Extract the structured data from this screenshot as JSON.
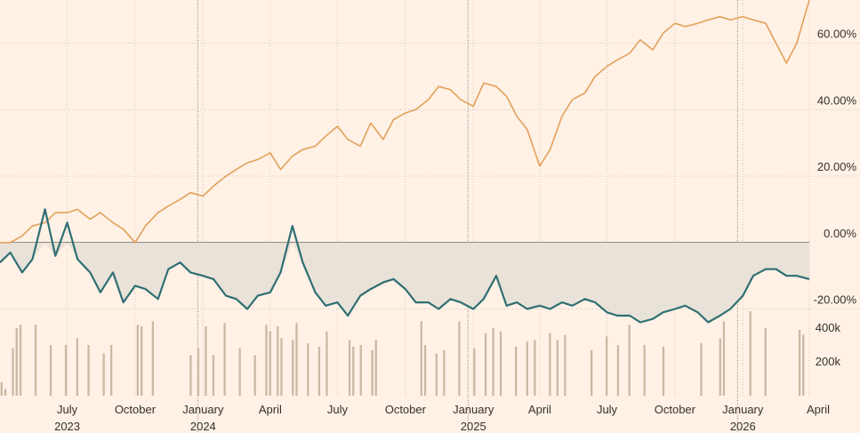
{
  "chart_data": {
    "type": "line",
    "x_axis": {
      "ticks": [
        {
          "label": "July",
          "year": "2023",
          "date": "2023-07-01"
        },
        {
          "label": "October",
          "year": "",
          "date": "2023-10-01"
        },
        {
          "label": "January",
          "year": "2024",
          "date": "2024-01-01"
        },
        {
          "label": "April",
          "year": "",
          "date": "2024-04-01"
        },
        {
          "label": "July",
          "year": "",
          "date": "2024-07-01"
        },
        {
          "label": "October",
          "year": "",
          "date": "2024-10-01"
        },
        {
          "label": "January",
          "year": "2025",
          "date": "2025-01-01"
        },
        {
          "label": "April",
          "year": "",
          "date": "2025-04-01"
        },
        {
          "label": "July",
          "year": "",
          "date": "2025-07-01"
        },
        {
          "label": "October",
          "year": "",
          "date": "2025-10-01"
        },
        {
          "label": "January",
          "year": "2026",
          "date": "2026-01-01"
        },
        {
          "label": "April",
          "year": "",
          "date": "2026-04-01"
        }
      ],
      "range": [
        "2023-04-01",
        "2026-04-01"
      ],
      "year_dividers": [
        "2024-01-01",
        "2025-01-01",
        "2026-01-01"
      ]
    },
    "y_axis": {
      "ticks": [
        {
          "label": "60.00%",
          "value": 60
        },
        {
          "label": "40.00%",
          "value": 40
        },
        {
          "label": "20.00%",
          "value": 20
        },
        {
          "label": "0.00%",
          "value": 0
        },
        {
          "label": "-20.00%",
          "value": -20
        }
      ],
      "range": [
        -22,
        73
      ]
    },
    "volume_axis": {
      "ticks": [
        {
          "label": "400k",
          "value": 400000
        },
        {
          "label": "200k",
          "value": 200000
        }
      ],
      "max": 500000
    },
    "series": [
      {
        "color": "#e3a15a",
        "x": [
          "2023-04-01",
          "2023-04-15",
          "2023-05-01",
          "2023-05-15",
          "2023-06-01",
          "2023-06-15",
          "2023-07-01",
          "2023-07-15",
          "2023-08-01",
          "2023-08-15",
          "2023-09-01",
          "2023-09-15",
          "2023-10-01",
          "2023-10-15",
          "2023-11-01",
          "2023-11-15",
          "2023-12-01",
          "2023-12-15",
          "2024-01-01",
          "2024-01-15",
          "2024-02-01",
          "2024-02-15",
          "2024-03-01",
          "2024-03-15",
          "2024-04-01",
          "2024-04-15",
          "2024-05-01",
          "2024-05-15",
          "2024-06-01",
          "2024-06-15",
          "2024-07-01",
          "2024-07-15",
          "2024-08-01",
          "2024-08-15",
          "2024-09-01",
          "2024-09-15",
          "2024-10-01",
          "2024-10-15",
          "2024-11-01",
          "2024-11-15",
          "2024-12-01",
          "2024-12-15",
          "2025-01-01",
          "2025-01-15",
          "2025-02-01",
          "2025-02-15",
          "2025-03-01",
          "2025-03-15",
          "2025-04-01",
          "2025-04-15",
          "2025-05-01",
          "2025-05-15",
          "2025-06-01",
          "2025-06-15",
          "2025-07-01",
          "2025-07-15",
          "2025-08-01",
          "2025-08-15",
          "2025-09-01",
          "2025-09-15",
          "2025-10-01",
          "2025-10-15",
          "2025-11-01",
          "2025-11-15",
          "2025-12-01",
          "2025-12-15",
          "2026-01-01",
          "2026-01-15",
          "2026-02-01",
          "2026-02-15",
          "2026-03-01",
          "2026-03-15",
          "2026-04-01"
        ],
        "values": [
          0,
          0,
          2,
          5,
          6,
          9,
          9,
          10,
          7,
          9,
          6,
          4,
          0,
          5,
          9,
          11,
          13,
          15,
          14,
          17,
          20,
          22,
          24,
          25,
          27,
          22,
          26,
          28,
          29,
          32,
          35,
          31,
          29,
          36,
          31,
          37,
          39,
          40,
          43,
          47,
          46,
          43,
          41,
          48,
          47,
          44,
          38,
          34,
          23,
          28,
          38,
          43,
          45,
          50,
          53,
          55,
          57,
          61,
          58,
          63,
          66,
          65,
          66,
          67,
          68,
          67,
          68,
          67,
          66,
          60,
          54,
          60,
          73
        ]
      },
      {
        "color": "#2f6f74",
        "x": [
          "2023-04-01",
          "2023-04-15",
          "2023-05-01",
          "2023-05-15",
          "2023-06-01",
          "2023-06-15",
          "2023-07-01",
          "2023-07-15",
          "2023-08-01",
          "2023-08-15",
          "2023-09-01",
          "2023-09-15",
          "2023-10-01",
          "2023-10-15",
          "2023-11-01",
          "2023-11-15",
          "2023-12-01",
          "2023-12-15",
          "2024-01-01",
          "2024-01-15",
          "2024-02-01",
          "2024-02-15",
          "2024-03-01",
          "2024-03-15",
          "2024-04-01",
          "2024-04-15",
          "2024-05-01",
          "2024-05-15",
          "2024-06-01",
          "2024-06-15",
          "2024-07-01",
          "2024-07-15",
          "2024-08-01",
          "2024-08-15",
          "2024-09-01",
          "2024-09-15",
          "2024-10-01",
          "2024-10-15",
          "2024-11-01",
          "2024-11-15",
          "2024-12-01",
          "2024-12-15",
          "2025-01-01",
          "2025-01-15",
          "2025-02-01",
          "2025-02-15",
          "2025-03-01",
          "2025-03-15",
          "2025-04-01",
          "2025-04-15",
          "2025-05-01",
          "2025-05-15",
          "2025-06-01",
          "2025-06-15",
          "2025-07-01",
          "2025-07-15",
          "2025-08-01",
          "2025-08-15",
          "2025-09-01",
          "2025-09-15",
          "2025-10-01",
          "2025-10-15",
          "2025-11-01",
          "2025-11-15",
          "2025-12-01",
          "2025-12-15",
          "2026-01-01",
          "2026-01-15",
          "2026-02-01",
          "2026-02-15",
          "2026-03-01",
          "2026-03-15",
          "2026-04-01"
        ],
        "values": [
          -6,
          -3,
          -9,
          -5,
          10,
          -4,
          6,
          -5,
          -9,
          -15,
          -9,
          -18,
          -13,
          -14,
          -17,
          -8,
          -6,
          -9,
          -10,
          -11,
          -16,
          -17,
          -20,
          -16,
          -15,
          -9,
          5,
          -6,
          -15,
          -19,
          -18,
          -22,
          -16,
          -14,
          -12,
          -11,
          -14,
          -18,
          -18,
          -20,
          -17,
          -18,
          -20,
          -17,
          -10,
          -19,
          -18,
          -20,
          -19,
          -20,
          -18,
          -19,
          -17,
          -18,
          -21,
          -22,
          -22,
          -24,
          -23,
          -21,
          -20,
          -19,
          -21,
          -24,
          -22,
          -20,
          -16,
          -10,
          -8,
          -8,
          -10,
          -10,
          -11
        ]
      }
    ],
    "volume": {
      "color": "#c9b9a4",
      "values": [
        80,
        40,
        0,
        280,
        400,
        420,
        0,
        0,
        0,
        420,
        0,
        0,
        0,
        300,
        0,
        0,
        0,
        300,
        0,
        0,
        340,
        0,
        0,
        300,
        0,
        0,
        0,
        250,
        0,
        300,
        0,
        0,
        0,
        0,
        0,
        0,
        420,
        410,
        0,
        0,
        440,
        0,
        0,
        0,
        0,
        0,
        0,
        0,
        0,
        0,
        240,
        0,
        280,
        0,
        410,
        0,
        240,
        0,
        0,
        430,
        0,
        0,
        0,
        280,
        0,
        0,
        0,
        240,
        0,
        0,
        420,
        380,
        0,
        410,
        340,
        0,
        0,
        330,
        430,
        0,
        0,
        310,
        0,
        0,
        290,
        0,
        380,
        0,
        0,
        0,
        0,
        0,
        330,
        290,
        0,
        300,
        0,
        0,
        270,
        330,
        0,
        0,
        0,
        0,
        0,
        0,
        0,
        0,
        0,
        0,
        0,
        440,
        300,
        0,
        0,
        250,
        0,
        270,
        0,
        0,
        0,
        440,
        0,
        0,
        0,
        280,
        0,
        0,
        370,
        0,
        400,
        0,
        380,
        0,
        0,
        0,
        290,
        0,
        0,
        320,
        0,
        330,
        0,
        0,
        0,
        370,
        0,
        330,
        0,
        360,
        0,
        0,
        0,
        0,
        0,
        0,
        270,
        0,
        0,
        0,
        350,
        0,
        0,
        300,
        0,
        0,
        420,
        0,
        0,
        0,
        300,
        0,
        0,
        0,
        0,
        290,
        0,
        0,
        0,
        0,
        0,
        0,
        0,
        0,
        0,
        310,
        0,
        0,
        0,
        0,
        340,
        440,
        0,
        0,
        0,
        0,
        0,
        0,
        500,
        0,
        0,
        0,
        400,
        0,
        0,
        0,
        0,
        0,
        0,
        0,
        0,
        390,
        360,
        0
      ]
    }
  }
}
